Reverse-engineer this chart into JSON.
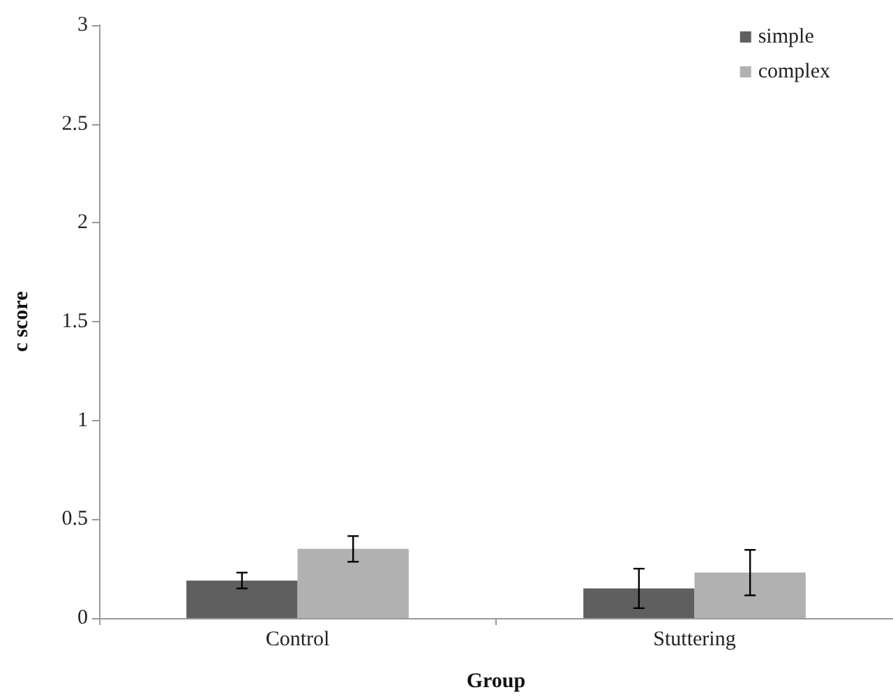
{
  "chart_data": {
    "type": "bar",
    "xlabel": "Group",
    "ylabel": "c score",
    "categories": [
      "Control",
      "Stuttering"
    ],
    "series": [
      {
        "name": "simple",
        "color": "#5f5f5f",
        "values": [
          0.19,
          0.15
        ],
        "errors": [
          0.04,
          0.1
        ]
      },
      {
        "name": "complex",
        "color": "#b1b1b1",
        "values": [
          0.35,
          0.23
        ],
        "errors": [
          0.065,
          0.115
        ]
      }
    ],
    "ylim": [
      0,
      3
    ],
    "yticks": [
      0,
      0.5,
      1,
      1.5,
      2,
      2.5,
      3
    ],
    "grid": false,
    "legend": "top right"
  }
}
